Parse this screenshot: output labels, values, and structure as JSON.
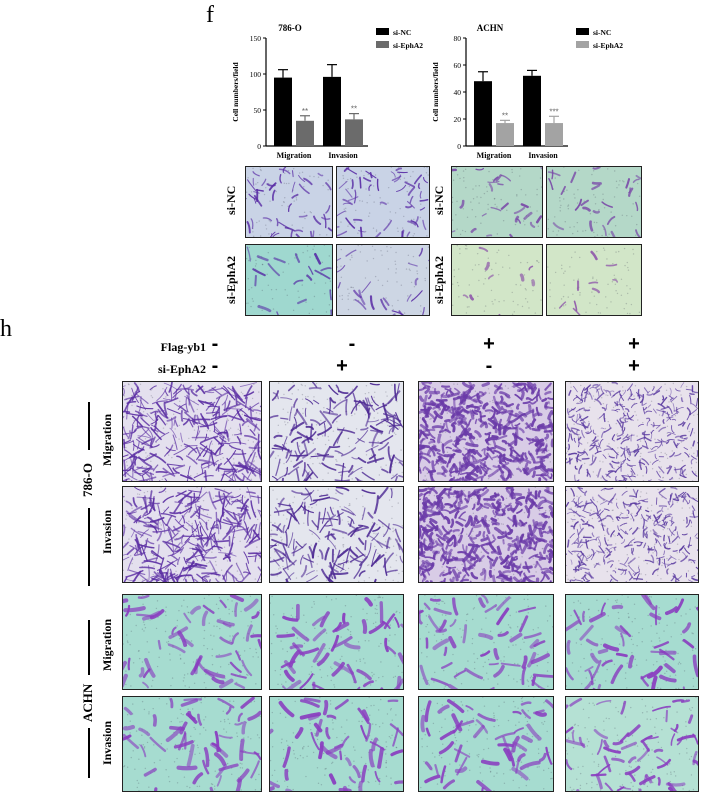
{
  "panel_f": {
    "letter": "f",
    "charts": [
      {
        "title": "786-O",
        "ylabel": "Cell numbers/field",
        "yticks": [
          "0",
          "50",
          "100",
          "150"
        ],
        "legend": [
          "si-NC",
          "si-EphA2"
        ],
        "categories": [
          "Migration",
          "Invasion"
        ],
        "sig": [
          "**",
          "**"
        ]
      },
      {
        "title": "ACHN",
        "ylabel": "Cell numbers/field",
        "yticks": [
          "0",
          "20",
          "40",
          "60",
          "80"
        ],
        "legend": [
          "si-NC",
          "si-EphA2"
        ],
        "categories": [
          "Migration",
          "Invasion"
        ],
        "sig": [
          "**",
          "***"
        ]
      }
    ],
    "row_labels": [
      "si-NC",
      "si-EphA2"
    ],
    "colors": {
      "si_nc_bar": "#000000",
      "si_epha2_bar_786": "#666666",
      "si_epha2_bar_achn": "#999999",
      "stain_purple": "#6a35b8",
      "bg_blue_gray": "#cfd8e6",
      "bg_green": "#aee0d0",
      "bg_pale": "#e6efd8"
    }
  },
  "panel_h": {
    "letter": "h",
    "conditions": [
      {
        "label": "Flag-yb1",
        "signs": [
          "-",
          "-",
          "+",
          "+"
        ]
      },
      {
        "label": "si-EphA2",
        "signs": [
          "-",
          "+",
          "-",
          "+"
        ]
      }
    ],
    "cell_lines": [
      {
        "name": "786-O",
        "rows": [
          "Migration",
          "Invasion"
        ]
      },
      {
        "name": "ACHN",
        "rows": [
          "Migration",
          "Invasion"
        ]
      }
    ]
  },
  "chart_data": [
    {
      "type": "bar",
      "title": "786-O",
      "xlabel": "",
      "ylabel": "Cell numbers/field",
      "ylim": [
        0,
        150
      ],
      "categories": [
        "Migration",
        "Invasion"
      ],
      "series": [
        {
          "name": "si-NC",
          "values": [
            95,
            96
          ],
          "errors": [
            11,
            17
          ]
        },
        {
          "name": "si-EphA2",
          "values": [
            35,
            37
          ],
          "errors": [
            7,
            8
          ]
        }
      ],
      "annotations": [
        "**",
        "**"
      ],
      "legend": "top-right",
      "grid": false
    },
    {
      "type": "bar",
      "title": "ACHN",
      "xlabel": "",
      "ylabel": "Cell numbers/field",
      "ylim": [
        0,
        80
      ],
      "categories": [
        "Migration",
        "Invasion"
      ],
      "series": [
        {
          "name": "si-NC",
          "values": [
            48,
            52
          ],
          "errors": [
            7,
            4
          ]
        },
        {
          "name": "si-EphA2",
          "values": [
            17,
            17
          ],
          "errors": [
            2,
            5
          ]
        }
      ],
      "annotations": [
        "**",
        "***"
      ],
      "legend": "top-right",
      "grid": false
    }
  ]
}
